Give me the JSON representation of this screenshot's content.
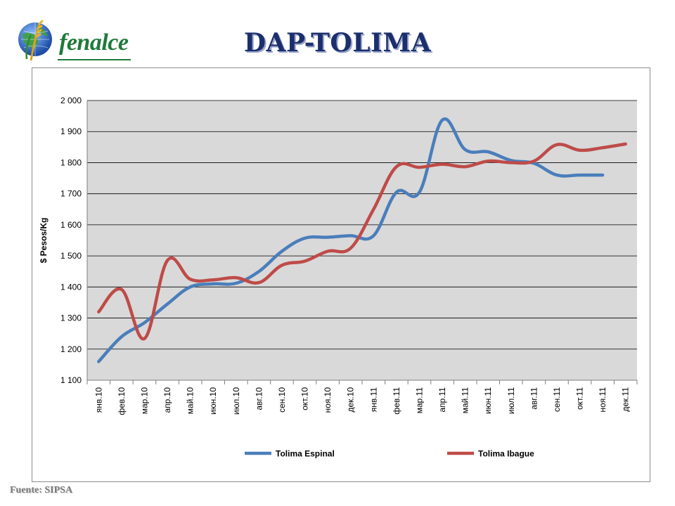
{
  "logo": {
    "text": "fenalce"
  },
  "title": "DAP-TOLIMA",
  "source": "Fuente: SIPSA",
  "colors": {
    "espinal": "#4a7ebb",
    "ibague": "#be4b48",
    "plot_bg": "#d9d9d9",
    "title": "#1b2f6e"
  },
  "chart_data": {
    "type": "line",
    "ylabel": "$ Pesos/Kg",
    "ylim": [
      1100,
      2000
    ],
    "yticks": [
      1100,
      1200,
      1300,
      1400,
      1500,
      1600,
      1700,
      1800,
      1900,
      2000
    ],
    "ytick_labels": [
      "1 100",
      "1 200",
      "1 300",
      "1 400",
      "1 500",
      "1 600",
      "1 700",
      "1 800",
      "1 900",
      "2 000"
    ],
    "categories": [
      "янв.10",
      "фев.10",
      "мар.10",
      "апр.10",
      "май.10",
      "июн.10",
      "июл.10",
      "авг.10",
      "сен.10",
      "окт.10",
      "ноя.10",
      "дек.10",
      "янв.11",
      "фев.11",
      "мар.11",
      "апр.11",
      "май.11",
      "июн.11",
      "июл.11",
      "авг.11",
      "сен.11",
      "окт.11",
      "ноя.11",
      "дек.11"
    ],
    "grid": true,
    "legend_position": "bottom",
    "series": [
      {
        "name": "Tolima Espinal",
        "color": "#4a7ebb",
        "values": [
          1160,
          1240,
          1285,
          1345,
          1400,
          1410,
          1412,
          1450,
          1515,
          1557,
          1560,
          1565,
          1565,
          1705,
          1705,
          1937,
          1842,
          1835,
          1807,
          1798,
          1760,
          1760,
          1760,
          null
        ]
      },
      {
        "name": "Tolima Ibague",
        "color": "#be4b48",
        "values": [
          1320,
          1392,
          1234,
          1485,
          1425,
          1423,
          1430,
          1414,
          1470,
          1483,
          1515,
          1525,
          1650,
          1787,
          1785,
          1795,
          1787,
          1805,
          1800,
          1805,
          1858,
          1840,
          1848,
          1860
        ]
      }
    ]
  }
}
